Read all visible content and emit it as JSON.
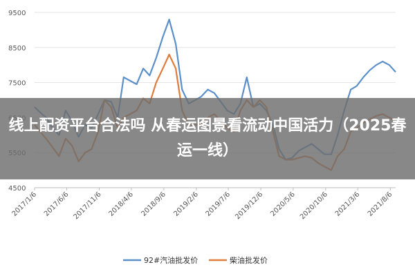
{
  "headline": "线上配资平台合法吗 从春运图景看流动中国活力（2025春运一线）",
  "chart_data": {
    "type": "line",
    "yticks": [
      4500,
      5500,
      6500,
      7500,
      8500,
      9500
    ],
    "ylim": [
      4500,
      9500
    ],
    "xlim": [
      "2017-01-06",
      "2021-08-31"
    ],
    "x_ticks": [
      {
        "label": "2017/1/6",
        "date": "2017-01-06"
      },
      {
        "label": "2017/6/6",
        "date": "2017-06-06"
      },
      {
        "label": "2017/11/6",
        "date": "2017-11-06"
      },
      {
        "label": "2018/4/6",
        "date": "2018-04-06"
      },
      {
        "label": "2018/9/6",
        "date": "2018-09-06"
      },
      {
        "label": "2019/2/6",
        "date": "2019-02-06"
      },
      {
        "label": "2019/7/6",
        "date": "2019-07-06"
      },
      {
        "label": "2019/12/6",
        "date": "2019-12-06"
      },
      {
        "label": "2020/5/6",
        "date": "2020-05-06"
      },
      {
        "label": "2020/10/6",
        "date": "2020-10-06"
      },
      {
        "label": "2021/3/6",
        "date": "2021-03-06"
      },
      {
        "label": "2021/8/6",
        "date": "2021-08-06"
      }
    ],
    "grid": "horizontal",
    "legend": "bottom-center",
    "series": [
      {
        "name": "92#汽油批发价",
        "color": "#5b8fc9",
        "points": [
          [
            "2017-01-06",
            6800
          ],
          [
            "2017-02-01",
            6650
          ],
          [
            "2017-03-01",
            6500
          ],
          [
            "2017-04-01",
            6200
          ],
          [
            "2017-05-01",
            6000
          ],
          [
            "2017-06-01",
            6700
          ],
          [
            "2017-07-01",
            6400
          ],
          [
            "2017-08-01",
            5950
          ],
          [
            "2017-09-01",
            6300
          ],
          [
            "2017-10-01",
            6200
          ],
          [
            "2017-11-01",
            6600
          ],
          [
            "2017-12-01",
            7000
          ],
          [
            "2018-01-01",
            6950
          ],
          [
            "2018-02-01",
            6500
          ],
          [
            "2018-03-01",
            7650
          ],
          [
            "2018-04-01",
            7550
          ],
          [
            "2018-05-01",
            7450
          ],
          [
            "2018-06-01",
            7900
          ],
          [
            "2018-07-01",
            7700
          ],
          [
            "2018-08-01",
            8200
          ],
          [
            "2018-09-01",
            8800
          ],
          [
            "2018-10-01",
            9300
          ],
          [
            "2018-11-01",
            8600
          ],
          [
            "2018-12-01",
            7300
          ],
          [
            "2019-01-01",
            6900
          ],
          [
            "2019-02-01",
            7000
          ],
          [
            "2019-03-01",
            7100
          ],
          [
            "2019-04-01",
            7300
          ],
          [
            "2019-05-01",
            7200
          ],
          [
            "2019-06-01",
            6950
          ],
          [
            "2019-07-01",
            6700
          ],
          [
            "2019-08-01",
            6600
          ],
          [
            "2019-09-01",
            6900
          ],
          [
            "2019-10-01",
            7650
          ],
          [
            "2019-11-01",
            6800
          ],
          [
            "2019-12-01",
            6900
          ],
          [
            "2020-01-01",
            6700
          ],
          [
            "2020-02-01",
            6300
          ],
          [
            "2020-03-01",
            5600
          ],
          [
            "2020-04-01",
            5300
          ],
          [
            "2020-05-01",
            5350
          ],
          [
            "2020-06-01",
            5550
          ],
          [
            "2020-07-01",
            5650
          ],
          [
            "2020-08-01",
            5750
          ],
          [
            "2020-09-01",
            5600
          ],
          [
            "2020-10-01",
            5450
          ],
          [
            "2020-11-01",
            5450
          ],
          [
            "2020-12-01",
            6000
          ],
          [
            "2021-01-01",
            6700
          ],
          [
            "2021-02-01",
            7300
          ],
          [
            "2021-03-01",
            7400
          ],
          [
            "2021-04-01",
            7650
          ],
          [
            "2021-05-01",
            7850
          ],
          [
            "2021-06-01",
            8000
          ],
          [
            "2021-07-01",
            8100
          ],
          [
            "2021-08-01",
            8000
          ],
          [
            "2021-08-31",
            7800
          ]
        ]
      },
      {
        "name": "柴油批发价",
        "color": "#e07b39",
        "points": [
          [
            "2017-01-06",
            6300
          ],
          [
            "2017-02-01",
            6100
          ],
          [
            "2017-03-01",
            5900
          ],
          [
            "2017-04-01",
            5650
          ],
          [
            "2017-05-01",
            5400
          ],
          [
            "2017-06-01",
            5900
          ],
          [
            "2017-07-01",
            5700
          ],
          [
            "2017-08-01",
            5250
          ],
          [
            "2017-09-01",
            5500
          ],
          [
            "2017-10-01",
            5600
          ],
          [
            "2017-11-01",
            6100
          ],
          [
            "2017-12-01",
            7000
          ],
          [
            "2018-01-01",
            6800
          ],
          [
            "2018-02-01",
            6200
          ],
          [
            "2018-03-01",
            6500
          ],
          [
            "2018-04-01",
            6600
          ],
          [
            "2018-05-01",
            6700
          ],
          [
            "2018-06-01",
            7050
          ],
          [
            "2018-07-01",
            6900
          ],
          [
            "2018-08-01",
            7500
          ],
          [
            "2018-09-01",
            7900
          ],
          [
            "2018-10-01",
            8300
          ],
          [
            "2018-11-01",
            7900
          ],
          [
            "2018-12-01",
            6700
          ],
          [
            "2019-01-01",
            6300
          ],
          [
            "2019-02-01",
            6300
          ],
          [
            "2019-03-01",
            6300
          ],
          [
            "2019-04-01",
            6500
          ],
          [
            "2019-05-01",
            6600
          ],
          [
            "2019-06-01",
            6400
          ],
          [
            "2019-07-01",
            6200
          ],
          [
            "2019-08-01",
            6100
          ],
          [
            "2019-09-01",
            6700
          ],
          [
            "2019-10-01",
            7000
          ],
          [
            "2019-11-01",
            6800
          ],
          [
            "2019-12-01",
            7000
          ],
          [
            "2020-01-01",
            6800
          ],
          [
            "2020-02-01",
            6100
          ],
          [
            "2020-03-01",
            5400
          ],
          [
            "2020-04-01",
            5300
          ],
          [
            "2020-05-01",
            5300
          ],
          [
            "2020-06-01",
            5350
          ],
          [
            "2020-07-01",
            5400
          ],
          [
            "2020-08-01",
            5350
          ],
          [
            "2020-09-01",
            5200
          ],
          [
            "2020-10-01",
            5100
          ],
          [
            "2020-11-01",
            5000
          ],
          [
            "2020-12-01",
            5400
          ],
          [
            "2021-01-01",
            5600
          ],
          [
            "2021-02-01",
            6100
          ],
          [
            "2021-03-01",
            6200
          ],
          [
            "2021-04-01",
            6350
          ],
          [
            "2021-05-01",
            6450
          ],
          [
            "2021-06-01",
            6550
          ],
          [
            "2021-07-01",
            6600
          ],
          [
            "2021-08-01",
            6500
          ],
          [
            "2021-08-31",
            6400
          ]
        ]
      }
    ]
  }
}
